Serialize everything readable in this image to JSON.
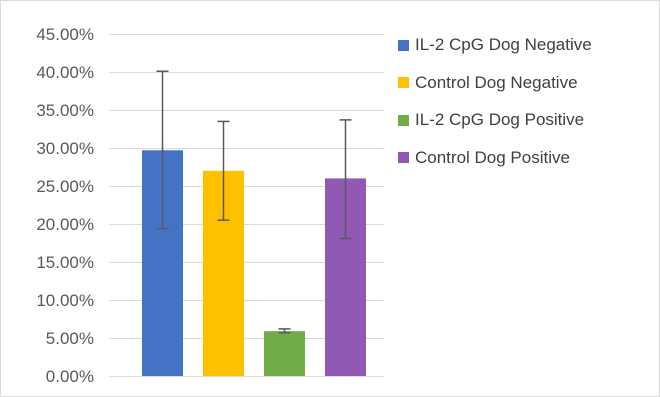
{
  "chart_data": {
    "type": "bar",
    "title": "",
    "xlabel": "",
    "ylabel": "",
    "ylim": [
      0,
      0.45
    ],
    "y_ticks": [
      0,
      0.05,
      0.1,
      0.15,
      0.2,
      0.25,
      0.3,
      0.35,
      0.4,
      0.45
    ],
    "y_tick_labels": [
      "0.00%",
      "5.00%",
      "10.00%",
      "15.00%",
      "20.00%",
      "25.00%",
      "30.00%",
      "35.00%",
      "40.00%",
      "45.00%"
    ],
    "grid": true,
    "legend_position": "right",
    "series": [
      {
        "name": "IL-2 CpG Dog Negative",
        "value": 0.297,
        "error_low": 0.194,
        "error_high": 0.401,
        "color": "#4472C4"
      },
      {
        "name": "Control Dog Negative",
        "value": 0.27,
        "error_low": 0.205,
        "error_high": 0.335,
        "color": "#FFC000"
      },
      {
        "name": "IL-2 CpG Dog Positive",
        "value": 0.059,
        "error_low": 0.057,
        "error_high": 0.062,
        "color": "#70AD47"
      },
      {
        "name": "Control Dog Positive",
        "value": 0.26,
        "error_low": 0.181,
        "error_high": 0.337,
        "color": "#9159B3"
      }
    ]
  }
}
